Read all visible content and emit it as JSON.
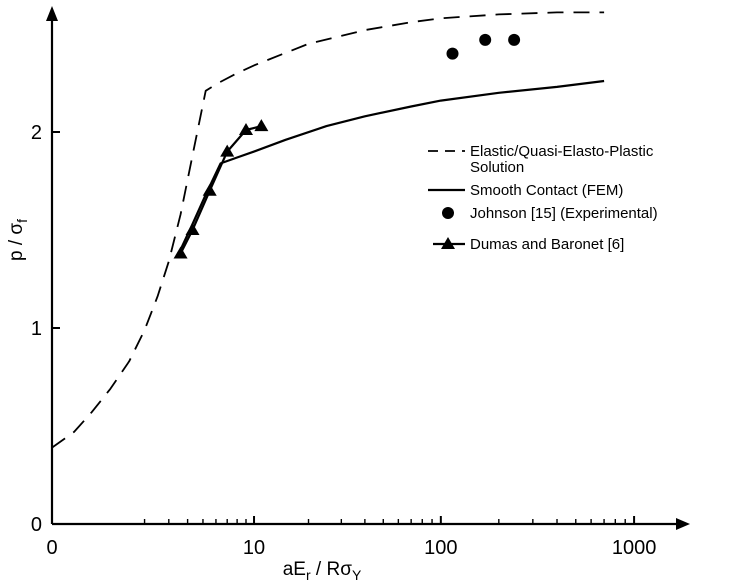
{
  "chart_data": {
    "type": "line",
    "xlabel": "aE_r / Rσ_Y",
    "ylabel": "p / σ_f",
    "xscale": "log(1+x)",
    "xlim": [
      0,
      2000
    ],
    "ylim": [
      0,
      2.6
    ],
    "x_ticks": [
      {
        "value": 0,
        "label": "0"
      },
      {
        "value": 10,
        "label": "10"
      },
      {
        "value": 100,
        "label": "100"
      },
      {
        "value": 1000,
        "label": "1000"
      }
    ],
    "y_ticks": [
      {
        "value": 0,
        "label": "0"
      },
      {
        "value": 1,
        "label": "1"
      },
      {
        "value": 2,
        "label": "2"
      }
    ],
    "grid": false,
    "legend_position": "right-middle",
    "series": [
      {
        "name": "Elastic/Quasi-Elasto-Plastic Solution",
        "legend_lines": [
          "Elastic/Quasi-Elasto-Plastic",
          "Solution"
        ],
        "style": "dashed",
        "marker": "none",
        "x": [
          0,
          0.3,
          0.6,
          1.0,
          1.5,
          2.0,
          2.5,
          3.0,
          3.6,
          4.3,
          5.2,
          6.2,
          8.0,
          10,
          20,
          40,
          70,
          100,
          200,
          400,
          700
        ],
        "y": [
          0.39,
          0.47,
          0.57,
          0.69,
          0.83,
          0.99,
          1.16,
          1.34,
          1.58,
          1.88,
          2.21,
          2.25,
          2.3,
          2.34,
          2.45,
          2.52,
          2.56,
          2.58,
          2.6,
          2.61,
          2.61
        ]
      },
      {
        "name": "Smooth Contact (FEM)",
        "legend_lines": [
          "Smooth Contact (FEM)"
        ],
        "style": "solid",
        "marker": "none",
        "x": [
          3.6,
          4.3,
          5.2,
          6.4,
          8.0,
          10,
          15,
          25,
          40,
          70,
          100,
          200,
          400,
          700
        ],
        "y": [
          1.4,
          1.53,
          1.68,
          1.84,
          1.87,
          1.9,
          1.96,
          2.03,
          2.08,
          2.13,
          2.16,
          2.2,
          2.23,
          2.26
        ]
      },
      {
        "name": "Johnson [15] (Experimental)",
        "legend_lines": [
          "Johnson  [15]  (Experimental)"
        ],
        "style": "none",
        "marker": "circle",
        "x": [
          115,
          170,
          240
        ],
        "y": [
          2.4,
          2.47,
          2.47
        ]
      },
      {
        "name": "Dumas and Baronet [6]",
        "legend_lines": [
          "Dumas and Baronet  [6]"
        ],
        "style": "solid",
        "marker": "triangle",
        "x": [
          3.6,
          4.3,
          5.5,
          7.0,
          9.0,
          11.0
        ],
        "y": [
          1.38,
          1.5,
          1.7,
          1.9,
          2.01,
          2.03
        ]
      }
    ]
  }
}
